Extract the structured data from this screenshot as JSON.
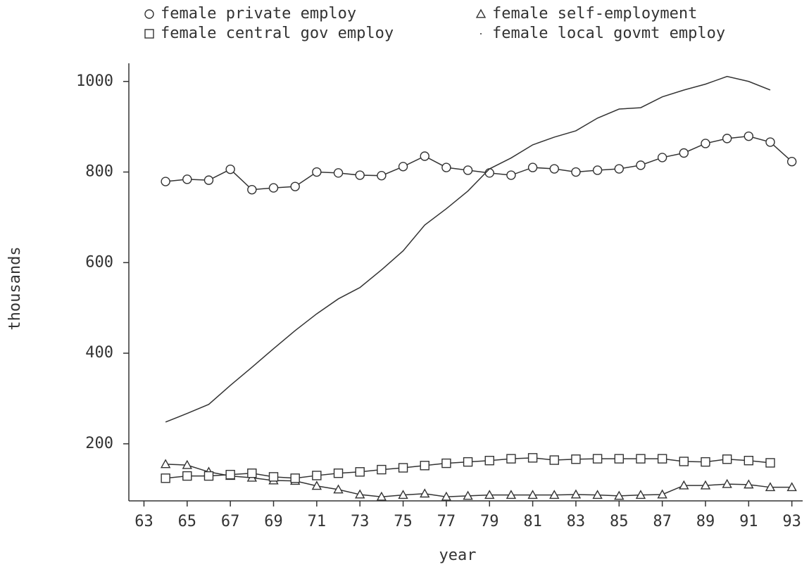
{
  "chart_data": {
    "type": "line",
    "x_label": "year",
    "y_label": "thousands",
    "x": [
      64,
      65,
      66,
      67,
      68,
      69,
      70,
      71,
      72,
      73,
      74,
      75,
      76,
      77,
      78,
      79,
      80,
      81,
      82,
      83,
      84,
      85,
      86,
      87,
      88,
      89,
      90,
      91,
      92,
      93
    ],
    "xlim": [
      62.3,
      93.5
    ],
    "xticks": [
      63,
      65,
      67,
      69,
      71,
      73,
      75,
      77,
      79,
      81,
      83,
      85,
      87,
      89,
      91,
      93
    ],
    "ylim": [
      74,
      1040
    ],
    "yticks": [
      200,
      400,
      600,
      800,
      1000
    ],
    "series": [
      {
        "name": "female private employ",
        "marker": "circle",
        "color": "#333333",
        "values": [
          779,
          784,
          782,
          806,
          761,
          765,
          768,
          800,
          798,
          793,
          792,
          812,
          835,
          810,
          804,
          798,
          793,
          810,
          807,
          800,
          804,
          807,
          815,
          832,
          842,
          863,
          874,
          879,
          866,
          823
        ]
      },
      {
        "name": "female self-employment",
        "marker": "triangle",
        "color": "#333333",
        "values": [
          155,
          153,
          138,
          129,
          125,
          119,
          118,
          107,
          99,
          88,
          83,
          87,
          90,
          83,
          85,
          87,
          87,
          87,
          87,
          88,
          87,
          85,
          87,
          88,
          108,
          108,
          111,
          110,
          104,
          104
        ]
      },
      {
        "name": "female central gov employ",
        "marker": "square",
        "color": "#333333",
        "values": [
          124,
          129,
          129,
          132,
          135,
          127,
          124,
          130,
          135,
          138,
          143,
          147,
          152,
          157,
          160,
          163,
          167,
          169,
          164,
          166,
          167,
          167,
          167,
          167,
          161,
          160,
          166,
          163,
          158,
          null
        ]
      },
      {
        "name": "female local govmt employ",
        "marker": "dot",
        "color": "#333333",
        "values": [
          248,
          267,
          287,
          329,
          369,
          410,
          450,
          487,
          520,
          545,
          584,
          626,
          683,
          719,
          758,
          807,
          831,
          860,
          877,
          891,
          919,
          939,
          942,
          966,
          981,
          994,
          1011,
          1000,
          981,
          null
        ]
      }
    ]
  }
}
